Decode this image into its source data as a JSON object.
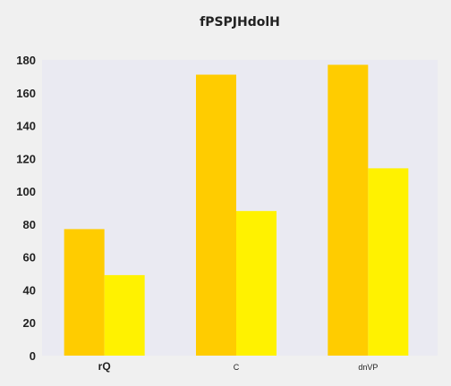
{
  "chart_data": {
    "type": "bar",
    "title": "fPSPJHdolH",
    "xlabel": "",
    "ylabel": "",
    "categories": [
      "rQ",
      "C",
      "dnVP"
    ],
    "series": [
      {
        "values": [
          77,
          171,
          177
        ],
        "color": "#ffcc00"
      },
      {
        "values": [
          49,
          88,
          114
        ],
        "color": "#fff200"
      }
    ],
    "ylim": [
      0,
      180
    ],
    "yticks": [
      0,
      20,
      40,
      60,
      80,
      100,
      120,
      140,
      160,
      180
    ],
    "grid": false,
    "legend": "none",
    "plot_background": "#eaeaf2",
    "page_background": "#f0f0f0"
  }
}
